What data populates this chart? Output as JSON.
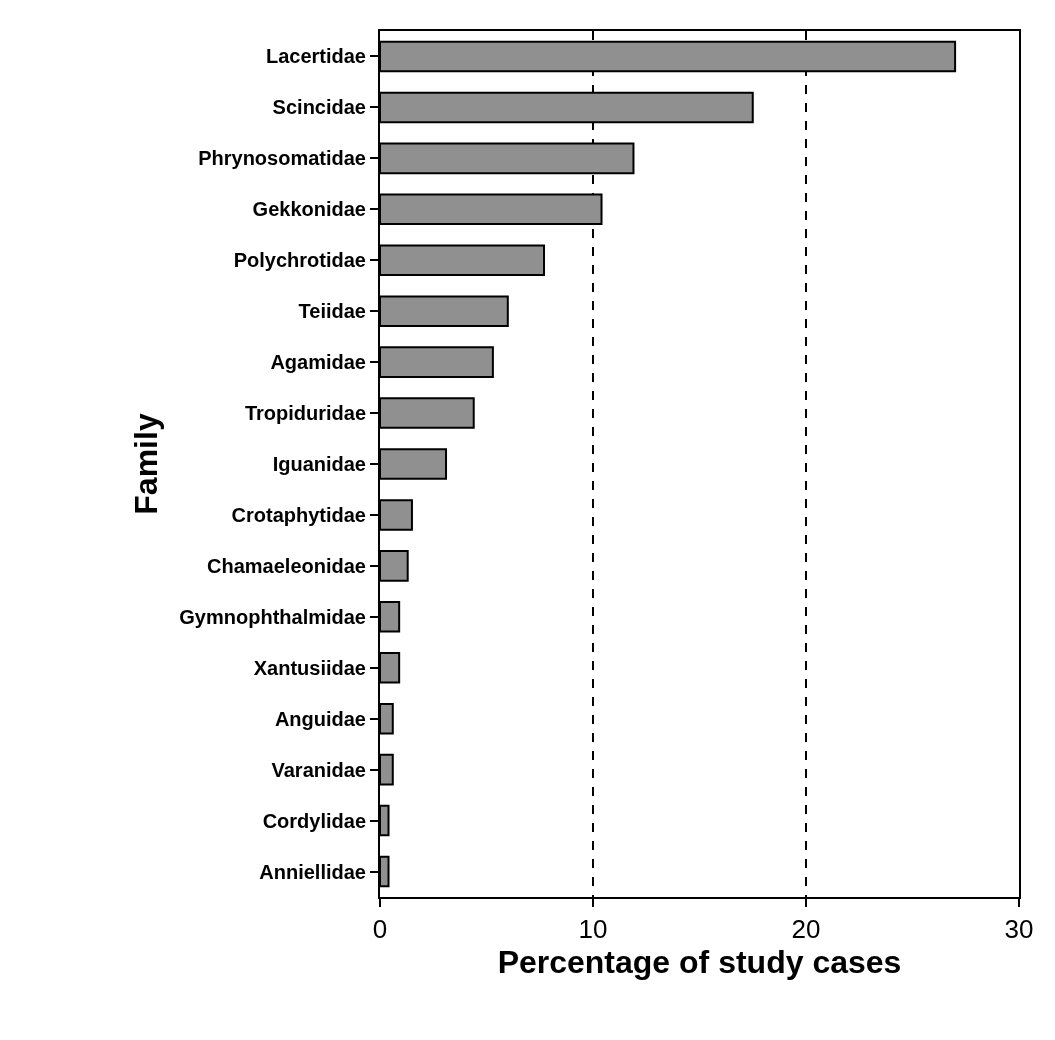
{
  "chart_data": {
    "type": "bar",
    "orientation": "horizontal",
    "xlabel": "Percentage of study cases",
    "ylabel": "Family",
    "categories": [
      "Lacertidae",
      "Scincidae",
      "Phrynosomatidae",
      "Gekkonidae",
      "Polychrotidae",
      "Teiidae",
      "Agamidae",
      "Tropiduridae",
      "Iguanidae",
      "Crotaphytidae",
      "Chamaeleonidae",
      "Gymnophthalmidae",
      "Xantusiidae",
      "Anguidae",
      "Varanidae",
      "Cordylidae",
      "Anniellidae"
    ],
    "values": [
      27.0,
      17.5,
      11.9,
      10.4,
      7.7,
      6.0,
      5.3,
      4.4,
      3.1,
      1.5,
      1.3,
      0.9,
      0.9,
      0.6,
      0.6,
      0.4,
      0.4
    ],
    "color": "#909090",
    "xlim": [
      0,
      30
    ],
    "xticks": [
      0,
      10,
      20,
      30
    ],
    "grid": "x"
  }
}
